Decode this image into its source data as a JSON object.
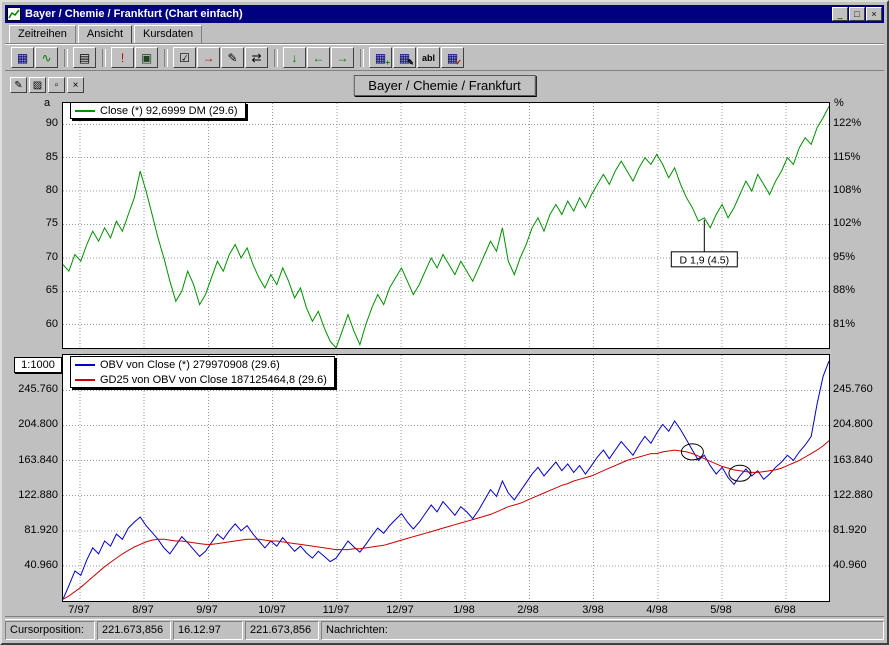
{
  "window": {
    "title": "Bayer / Chemie / Frankfurt (Chart einfach)",
    "controls": {
      "minimize": "_",
      "maximize": "□",
      "close": "×"
    }
  },
  "tabs": [
    {
      "label": "Zeitreihen"
    },
    {
      "label": "Ansicht",
      "active": true
    },
    {
      "label": "Kursdaten"
    }
  ],
  "toolbar": {
    "buttons": [
      {
        "name": "table-button",
        "glyph": "▦",
        "color": "#000080"
      },
      {
        "name": "chart-button",
        "glyph": "∿",
        "color": "#008000"
      },
      {
        "name": "sep"
      },
      {
        "name": "preview-button",
        "glyph": "▤",
        "color": "#000000"
      },
      {
        "name": "sep"
      },
      {
        "name": "alert-button",
        "glyph": "!",
        "color": "#c00000"
      },
      {
        "name": "print-button",
        "glyph": "▣",
        "color": "#204020"
      },
      {
        "name": "sep"
      },
      {
        "name": "checklist-button",
        "glyph": "☑",
        "color": "#000000"
      },
      {
        "name": "forward-button",
        "glyph": "→",
        "color": "#c00000"
      },
      {
        "name": "pen-button",
        "glyph": "✎",
        "color": "#000000"
      },
      {
        "name": "compare-button",
        "glyph": "⇄",
        "color": "#000000"
      },
      {
        "name": "sep"
      },
      {
        "name": "arrow-down-button",
        "glyph": "↓",
        "color": "#008000"
      },
      {
        "name": "arrow-left-button",
        "glyph": "←",
        "color": "#008000"
      },
      {
        "name": "arrow-right-button",
        "glyph": "→",
        "color": "#008000"
      },
      {
        "name": "sep"
      },
      {
        "name": "table-add-button",
        "glyph": "▦",
        "color": "#000080",
        "badge": "+",
        "badge_color": "#008000"
      },
      {
        "name": "table-edit-button",
        "glyph": "▦",
        "color": "#000080",
        "badge": "✎",
        "badge_color": "#000000"
      },
      {
        "name": "label-button",
        "glyph": "abl",
        "color": "#000000"
      },
      {
        "name": "table-check-button",
        "glyph": "▦",
        "color": "#000080",
        "badge": "✓",
        "badge_color": "#c00000"
      }
    ]
  },
  "chart_header": {
    "title": "Bayer / Chemie / Frankfurt",
    "tools": [
      {
        "name": "draw-tool-button",
        "glyph": "✎"
      },
      {
        "name": "fill-tool-button",
        "glyph": "▨"
      },
      {
        "name": "swatch-button",
        "glyph": "▫"
      },
      {
        "name": "close-chart-button",
        "glyph": "×"
      }
    ]
  },
  "status_bar": {
    "cursor_label": "Cursorposition:",
    "value1": "221.673,856",
    "date": "16.12.97",
    "value2": "221.673,856",
    "messages_label": "Nachrichten:"
  },
  "chart_data": [
    {
      "type": "line",
      "name": "price-panel",
      "corner_left": "a",
      "corner_right": "%",
      "ylim": [
        56.5,
        93.2
      ],
      "grid": true,
      "legend_position": "top-left",
      "yticks": [
        {
          "v": 90,
          "left": "90",
          "right": "122%"
        },
        {
          "v": 85,
          "left": "85",
          "right": "115%"
        },
        {
          "v": 80,
          "left": "80",
          "right": "108%"
        },
        {
          "v": 75,
          "left": "75",
          "right": "102%"
        },
        {
          "v": 70,
          "left": "70",
          "right": "95%"
        },
        {
          "v": 65,
          "left": "65",
          "right": "88%"
        },
        {
          "v": 60,
          "left": "60",
          "right": "81%"
        }
      ],
      "x_categories": [
        "7/97",
        "8/97",
        "9/97",
        "10/97",
        "11/97",
        "12/97",
        "1/98",
        "2/98",
        "3/98",
        "4/98",
        "5/98",
        "6/98"
      ],
      "annotation": {
        "label": "D 1,9 (4.5)",
        "index": 108
      },
      "series": [
        {
          "name": "Close",
          "legend": "Close (*) 92,6999 DM (29.6)",
          "color": "#009000",
          "values": [
            69,
            68,
            70.5,
            69.5,
            72,
            74,
            72.5,
            74.5,
            73,
            75.5,
            74,
            76.5,
            79,
            83,
            80,
            76.5,
            73,
            70,
            66.5,
            63.5,
            65,
            68,
            66,
            63,
            64.5,
            67,
            69.5,
            68,
            70.5,
            72,
            70,
            71.5,
            69,
            67,
            65.5,
            67.5,
            66,
            68.5,
            66.5,
            64,
            65.5,
            62.5,
            60.5,
            62,
            59.5,
            57.5,
            56.5,
            59,
            61.5,
            59,
            57,
            60,
            62.5,
            64.5,
            63,
            65.5,
            67,
            68.5,
            66.5,
            64.5,
            66,
            68,
            70,
            68.5,
            70.5,
            69,
            67.5,
            69.5,
            68,
            66.5,
            68.5,
            70.5,
            72.5,
            71,
            74.5,
            69.5,
            67.5,
            70,
            72,
            74.5,
            76,
            74,
            76.5,
            78,
            76.5,
            78.5,
            77,
            79,
            77.5,
            79.5,
            81,
            82.5,
            81,
            83,
            84.5,
            83,
            81.5,
            83.5,
            85,
            84,
            85.5,
            84,
            82,
            83.5,
            81,
            79,
            77.5,
            75.5,
            76,
            74.5,
            76.5,
            78,
            76,
            77.5,
            79.5,
            81.5,
            80,
            82.5,
            81,
            79.5,
            81.5,
            83,
            85,
            84,
            86.5,
            88,
            87,
            89.5,
            91,
            92.7
          ]
        }
      ]
    },
    {
      "type": "line",
      "name": "obv-panel",
      "scale_label": "1:1000",
      "ylim": [
        0,
        287
      ],
      "grid": true,
      "legend_position": "top-left",
      "unit": "millions",
      "yticks": [
        {
          "v": 245.76,
          "label": "245.760"
        },
        {
          "v": 204.8,
          "label": "204.800"
        },
        {
          "v": 163.84,
          "label": "163.840"
        },
        {
          "v": 122.88,
          "label": "122.880"
        },
        {
          "v": 81.92,
          "label": "81.920"
        },
        {
          "v": 40.96,
          "label": "40.960"
        }
      ],
      "x_categories": [
        "7/97",
        "8/97",
        "9/97",
        "10/97",
        "11/97",
        "12/97",
        "1/98",
        "2/98",
        "3/98",
        "4/98",
        "5/98",
        "6/98"
      ],
      "markers": [
        {
          "type": "circle",
          "index": 106
        },
        {
          "type": "circle",
          "index": 114
        }
      ],
      "series": [
        {
          "name": "OBV",
          "legend": "OBV von Close (*) 279970908 (29.6)",
          "color": "#0000cc",
          "values": [
            2,
            18,
            35,
            30,
            48,
            62,
            55,
            70,
            64,
            78,
            72,
            85,
            92,
            98,
            88,
            80,
            72,
            62,
            55,
            65,
            75,
            68,
            60,
            52,
            58,
            68,
            78,
            72,
            82,
            90,
            82,
            88,
            78,
            70,
            62,
            70,
            64,
            74,
            66,
            58,
            64,
            56,
            50,
            58,
            52,
            46,
            50,
            60,
            70,
            63,
            57,
            66,
            76,
            85,
            79,
            88,
            95,
            102,
            92,
            84,
            92,
            102,
            112,
            104,
            116,
            108,
            100,
            110,
            104,
            96,
            106,
            118,
            130,
            122,
            140,
            126,
            118,
            128,
            138,
            148,
            156,
            146,
            154,
            162,
            152,
            160,
            150,
            158,
            148,
            158,
            168,
            176,
            166,
            176,
            186,
            178,
            170,
            182,
            192,
            184,
            196,
            206,
            198,
            210,
            200,
            188,
            176,
            164,
            170,
            158,
            148,
            156,
            144,
            136,
            146,
            154,
            146,
            152,
            142,
            148,
            156,
            162,
            170,
            164,
            174,
            182,
            192,
            230,
            262,
            280
          ]
        },
        {
          "name": "GD25",
          "legend": "GD25 von OBV von Close 187125464,8 (29.6)",
          "color": "#cc0000",
          "values": [
            2,
            6,
            11,
            16,
            22,
            28,
            34,
            40,
            45,
            50,
            55,
            59,
            63,
            66,
            69,
            71,
            72,
            72,
            71,
            70,
            70,
            69,
            68,
            67,
            66,
            66,
            67,
            68,
            69,
            70,
            71,
            72,
            72,
            72,
            71,
            70,
            70,
            69,
            68,
            67,
            66,
            65,
            64,
            63,
            62,
            61,
            60,
            60,
            60,
            61,
            61,
            62,
            63,
            64,
            65,
            67,
            69,
            71,
            73,
            75,
            77,
            79,
            81,
            83,
            85,
            87,
            89,
            91,
            93,
            95,
            97,
            99,
            101,
            104,
            107,
            110,
            112,
            114,
            117,
            120,
            123,
            126,
            129,
            132,
            135,
            137,
            140,
            142,
            144,
            146,
            149,
            152,
            155,
            158,
            161,
            164,
            166,
            168,
            170,
            172,
            172,
            174,
            175,
            176,
            175,
            174,
            172,
            169,
            166,
            163,
            160,
            157,
            155,
            153,
            152,
            151,
            150,
            150,
            151,
            152,
            153,
            155,
            158,
            161,
            164,
            168,
            172,
            176,
            181,
            187
          ]
        }
      ]
    }
  ]
}
